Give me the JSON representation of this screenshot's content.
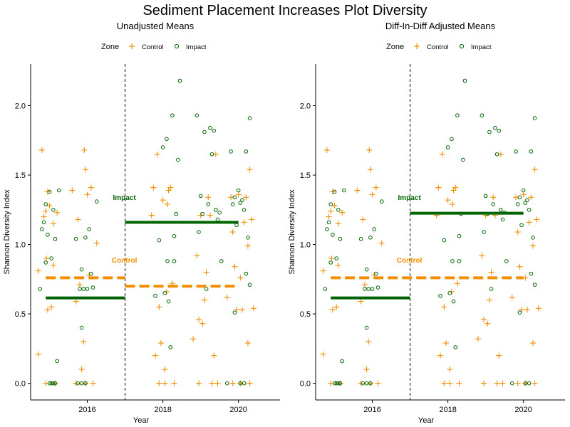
{
  "title": "Sediment Placement Increases Plot Diversity",
  "colors": {
    "control": "#f28e00",
    "impact": "#006400",
    "axis": "#000000"
  },
  "chart_data": [
    {
      "type": "scatter",
      "title": "Unadjusted Means",
      "xlabel": "Year",
      "ylabel": "Shannon Diversity Index",
      "xlim": [
        2014.5,
        2021.1
      ],
      "ylim": [
        -0.12,
        2.3
      ],
      "xticks": [
        2016,
        2018,
        2020
      ],
      "yticks": [
        0.0,
        0.5,
        1.0,
        1.5,
        2.0
      ],
      "ytick_labels": [
        "0.0",
        "0.5",
        "1.0",
        "1.5",
        "2.0"
      ],
      "legend": {
        "title": "Zone",
        "position": "top",
        "entries": [
          "Control",
          "Impact"
        ]
      },
      "vline": 2017,
      "annotations": [
        {
          "text": "Impact",
          "x": 2017.0,
          "y": 1.34,
          "series": "impact"
        },
        {
          "text": "Control",
          "x": 2017.0,
          "y": 0.89,
          "series": "control"
        }
      ],
      "means": [
        {
          "series": "control",
          "style": "dashed",
          "x0": 2014.9,
          "x1": 2017.0,
          "y": 0.76
        },
        {
          "series": "control",
          "style": "dashed",
          "x0": 2017.0,
          "x1": 2020.0,
          "y": 0.7
        },
        {
          "series": "impact",
          "style": "solid",
          "x0": 2014.9,
          "x1": 2017.0,
          "y": 0.615
        },
        {
          "series": "impact",
          "style": "solid",
          "x0": 2017.0,
          "x1": 2020.0,
          "y": 1.16
        }
      ],
      "series": [
        {
          "name": "Control",
          "key": "control",
          "marker": "plus",
          "points": [
            [
              2014.7,
              0.81
            ],
            [
              2014.7,
              0.21
            ],
            [
              2014.8,
              1.68
            ],
            [
              2014.85,
              1.2
            ],
            [
              2014.9,
              1.24
            ],
            [
              2014.92,
              0.9
            ],
            [
              2014.95,
              1.38
            ],
            [
              2014.95,
              0.53
            ],
            [
              2015.0,
              1.28
            ],
            [
              2015.05,
              0.55
            ],
            [
              2015.1,
              1.15
            ],
            [
              2015.1,
              0.85
            ],
            [
              2015.15,
              0.0
            ],
            [
              2015.2,
              1.23
            ],
            [
              2014.9,
              0.0
            ],
            [
              2015.6,
              1.39
            ],
            [
              2015.7,
              0.59
            ],
            [
              2015.75,
              1.18
            ],
            [
              2015.8,
              0.71
            ],
            [
              2015.85,
              0.1
            ],
            [
              2015.9,
              0.3
            ],
            [
              2015.92,
              1.68
            ],
            [
              2015.95,
              1.54
            ],
            [
              2016.0,
              1.36
            ],
            [
              2016.05,
              0.78
            ],
            [
              2016.1,
              1.41
            ],
            [
              2016.15,
              0.0
            ],
            [
              2016.25,
              1.01
            ],
            [
              2015.7,
              0.0
            ],
            [
              2015.95,
              0.0
            ],
            [
              2017.7,
              1.21
            ],
            [
              2017.75,
              1.41
            ],
            [
              2017.8,
              0.2
            ],
            [
              2017.85,
              1.65
            ],
            [
              2017.9,
              0.55
            ],
            [
              2017.95,
              0.29
            ],
            [
              2017.9,
              0.0
            ],
            [
              2018.0,
              1.32
            ],
            [
              2018.05,
              0.1
            ],
            [
              2018.1,
              0.66
            ],
            [
              2018.12,
              1.29
            ],
            [
              2018.15,
              1.39
            ],
            [
              2018.2,
              1.41
            ],
            [
              2018.25,
              0.72
            ],
            [
              2018.05,
              0.0
            ],
            [
              2018.3,
              0.0
            ],
            [
              2018.8,
              0.32
            ],
            [
              2018.9,
              0.92
            ],
            [
              2018.95,
              0.46
            ],
            [
              2019.0,
              1.21
            ],
            [
              2019.05,
              0.43
            ],
            [
              2019.1,
              0.6
            ],
            [
              2019.15,
              0.8
            ],
            [
              2019.2,
              1.34
            ],
            [
              2019.25,
              1.21
            ],
            [
              2019.35,
              0.2
            ],
            [
              2019.4,
              1.65
            ],
            [
              2018.95,
              0.0
            ],
            [
              2019.3,
              0.0
            ],
            [
              2019.45,
              0.0
            ],
            [
              2019.7,
              0.62
            ],
            [
              2019.8,
              1.34
            ],
            [
              2019.85,
              1.09
            ],
            [
              2019.9,
              0.84
            ],
            [
              2019.95,
              0.53
            ],
            [
              2020.0,
              1.36
            ],
            [
              2020.05,
              0.76
            ],
            [
              2020.1,
              0.53
            ],
            [
              2020.15,
              1.16
            ],
            [
              2020.2,
              1.34
            ],
            [
              2020.25,
              0.99
            ],
            [
              2020.25,
              0.29
            ],
            [
              2020.3,
              1.54
            ],
            [
              2020.35,
              1.18
            ],
            [
              2020.4,
              0.54
            ],
            [
              2019.85,
              0.0
            ],
            [
              2020.05,
              0.0
            ],
            [
              2020.3,
              0.0
            ]
          ]
        },
        {
          "name": "Impact",
          "key": "impact",
          "marker": "circle",
          "points": [
            [
              2014.75,
              0.68
            ],
            [
              2014.8,
              1.11
            ],
            [
              2014.85,
              1.16
            ],
            [
              2014.9,
              0.87
            ],
            [
              2014.9,
              1.29
            ],
            [
              2014.95,
              1.07
            ],
            [
              2015.0,
              1.38
            ],
            [
              2015.05,
              0.9
            ],
            [
              2015.1,
              1.25
            ],
            [
              2015.15,
              1.04
            ],
            [
              2015.2,
              0.16
            ],
            [
              2015.25,
              1.39
            ],
            [
              2015.0,
              0.0
            ],
            [
              2015.05,
              0.0
            ],
            [
              2015.1,
              0.0
            ],
            [
              2015.15,
              0.0
            ],
            [
              2015.7,
              1.04
            ],
            [
              2015.8,
              0.68
            ],
            [
              2015.85,
              0.4
            ],
            [
              2015.85,
              0.82
            ],
            [
              2015.9,
              0.68
            ],
            [
              2015.95,
              1.05
            ],
            [
              2016.0,
              0.68
            ],
            [
              2016.05,
              1.11
            ],
            [
              2016.1,
              0.79
            ],
            [
              2016.15,
              0.69
            ],
            [
              2016.25,
              1.31
            ],
            [
              2015.75,
              0.0
            ],
            [
              2015.85,
              0.0
            ],
            [
              2015.95,
              0.0
            ],
            [
              2017.8,
              0.63
            ],
            [
              2017.9,
              1.03
            ],
            [
              2018.0,
              1.7
            ],
            [
              2018.05,
              0.65
            ],
            [
              2018.1,
              1.76
            ],
            [
              2018.12,
              0.88
            ],
            [
              2018.15,
              0.59
            ],
            [
              2018.2,
              0.26
            ],
            [
              2018.25,
              1.93
            ],
            [
              2018.3,
              0.88
            ],
            [
              2018.3,
              1.06
            ],
            [
              2018.35,
              1.22
            ],
            [
              2018.4,
              1.61
            ],
            [
              2018.45,
              2.18
            ],
            [
              2018.9,
              1.93
            ],
            [
              2018.95,
              1.09
            ],
            [
              2019.0,
              1.35
            ],
            [
              2019.05,
              1.22
            ],
            [
              2019.1,
              1.81
            ],
            [
              2019.15,
              0.68
            ],
            [
              2019.2,
              1.29
            ],
            [
              2019.25,
              1.84
            ],
            [
              2019.3,
              1.65
            ],
            [
              2019.35,
              1.82
            ],
            [
              2019.4,
              1.25
            ],
            [
              2019.45,
              1.18
            ],
            [
              2019.5,
              1.23
            ],
            [
              2019.55,
              0.88
            ],
            [
              2019.8,
              1.67
            ],
            [
              2019.85,
              1.29
            ],
            [
              2019.9,
              1.34
            ],
            [
              2019.95,
              1.14
            ],
            [
              2020.0,
              1.39
            ],
            [
              2020.05,
              1.3
            ],
            [
              2020.1,
              1.32
            ],
            [
              2020.15,
              1.25
            ],
            [
              2020.2,
              1.67
            ],
            [
              2020.25,
              1.05
            ],
            [
              2020.3,
              1.91
            ],
            [
              2020.3,
              0.71
            ],
            [
              2020.2,
              0.79
            ],
            [
              2019.9,
              0.51
            ],
            [
              2020.05,
              0.0
            ],
            [
              2020.15,
              0.0
            ],
            [
              2019.7,
              0.0
            ]
          ]
        }
      ]
    },
    {
      "type": "scatter",
      "title": "Diff-In-Diff Adjusted Means",
      "xlabel": "Year",
      "ylabel": "Shannon Diversity Index",
      "xlim": [
        2014.5,
        2021.1
      ],
      "ylim": [
        -0.12,
        2.3
      ],
      "xticks": [
        2016,
        2018,
        2020
      ],
      "yticks": [
        0.0,
        0.5,
        1.0,
        1.5,
        2.0
      ],
      "ytick_labels": [
        "0.0",
        "0.5",
        "1.0",
        "1.5",
        "2.0"
      ],
      "legend": {
        "title": "Zone",
        "position": "top",
        "entries": [
          "Control",
          "Impact"
        ]
      },
      "vline": 2017,
      "annotations": [
        {
          "text": "Impact",
          "x": 2017.0,
          "y": 1.34,
          "series": "impact"
        },
        {
          "text": "Control",
          "x": 2017.0,
          "y": 0.89,
          "series": "control"
        }
      ],
      "means": [
        {
          "series": "control",
          "style": "dashed",
          "x0": 2014.9,
          "x1": 2020.0,
          "y": 0.76
        },
        {
          "series": "impact",
          "style": "solid",
          "x0": 2014.9,
          "x1": 2017.0,
          "y": 0.615
        },
        {
          "series": "impact",
          "style": "solid",
          "x0": 2017.0,
          "x1": 2020.0,
          "y": 1.225
        }
      ],
      "series": "same-as-panel-1"
    }
  ]
}
